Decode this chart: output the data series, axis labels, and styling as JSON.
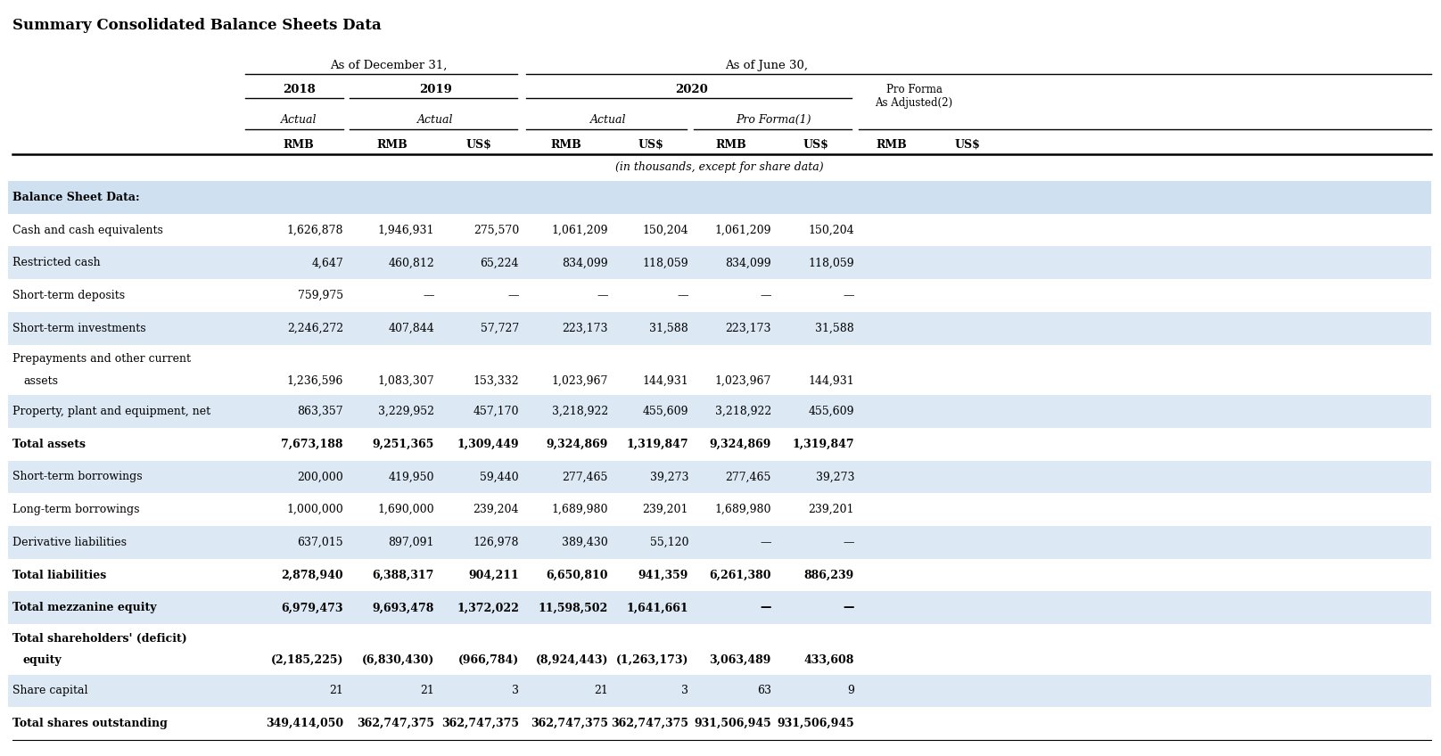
{
  "title": "Summary Consolidated Balance Sheets Data",
  "bg_color": "#ffffff",
  "blue_bg": "#dce9f5",
  "header_bg": "#cfe0f0",
  "rows": [
    {
      "label": "Balance Sheet Data:",
      "bold": true,
      "bg": "header",
      "twolines": false,
      "vals": [
        "",
        "",
        "",
        "",
        "",
        "",
        "",
        "",
        ""
      ]
    },
    {
      "label": "Cash and cash equivalents",
      "bold": false,
      "bg": "white",
      "twolines": false,
      "vals": [
        "1,626,878",
        "1,946,931",
        "275,570",
        "1,061,209",
        "150,204",
        "1,061,209",
        "150,204",
        "",
        ""
      ]
    },
    {
      "label": "Restricted cash",
      "bold": false,
      "bg": "blue",
      "twolines": false,
      "vals": [
        "4,647",
        "460,812",
        "65,224",
        "834,099",
        "118,059",
        "834,099",
        "118,059",
        "",
        ""
      ]
    },
    {
      "label": "Short-term deposits",
      "bold": false,
      "bg": "white",
      "twolines": false,
      "vals": [
        "759,975",
        "—",
        "—",
        "—",
        "—",
        "—",
        "—",
        "",
        ""
      ]
    },
    {
      "label": "Short-term investments",
      "bold": false,
      "bg": "blue",
      "twolines": false,
      "vals": [
        "2,246,272",
        "407,844",
        "57,727",
        "223,173",
        "31,588",
        "223,173",
        "31,588",
        "",
        ""
      ]
    },
    {
      "label": "Prepayments and other current",
      "bold": false,
      "bg": "white",
      "twolines": true,
      "label2": "  assets",
      "vals": [
        "1,236,596",
        "1,083,307",
        "153,332",
        "1,023,967",
        "144,931",
        "1,023,967",
        "144,931",
        "",
        ""
      ]
    },
    {
      "label": "Property, plant and equipment, net",
      "bold": false,
      "bg": "blue",
      "twolines": false,
      "vals": [
        "863,357",
        "3,229,952",
        "457,170",
        "3,218,922",
        "455,609",
        "3,218,922",
        "455,609",
        "",
        ""
      ]
    },
    {
      "label": "Total assets",
      "bold": true,
      "bg": "white",
      "twolines": false,
      "vals": [
        "7,673,188",
        "9,251,365",
        "1,309,449",
        "9,324,869",
        "1,319,847",
        "9,324,869",
        "1,319,847",
        "",
        ""
      ]
    },
    {
      "label": "Short-term borrowings",
      "bold": false,
      "bg": "blue",
      "twolines": false,
      "vals": [
        "200,000",
        "419,950",
        "59,440",
        "277,465",
        "39,273",
        "277,465",
        "39,273",
        "",
        ""
      ]
    },
    {
      "label": "Long-term borrowings",
      "bold": false,
      "bg": "white",
      "twolines": false,
      "vals": [
        "1,000,000",
        "1,690,000",
        "239,204",
        "1,689,980",
        "239,201",
        "1,689,980",
        "239,201",
        "",
        ""
      ]
    },
    {
      "label": "Derivative liabilities",
      "bold": false,
      "bg": "blue",
      "twolines": false,
      "vals": [
        "637,015",
        "897,091",
        "126,978",
        "389,430",
        "55,120",
        "—",
        "—",
        "",
        ""
      ]
    },
    {
      "label": "Total liabilities",
      "bold": true,
      "bg": "white",
      "twolines": false,
      "vals": [
        "2,878,940",
        "6,388,317",
        "904,211",
        "6,650,810",
        "941,359",
        "6,261,380",
        "886,239",
        "",
        ""
      ]
    },
    {
      "label": "Total mezzanine equity",
      "bold": true,
      "bg": "blue",
      "twolines": false,
      "vals": [
        "6,979,473",
        "9,693,478",
        "1,372,022",
        "11,598,502",
        "1,641,661",
        "—",
        "—",
        "",
        ""
      ]
    },
    {
      "label": "Total shareholders' (deficit)",
      "bold": true,
      "bg": "white",
      "twolines": true,
      "label2": "  equity",
      "vals": [
        "(2,185,225)",
        "(6,830,430)",
        "(966,784)",
        "(8,924,443)",
        "(1,263,173)",
        "3,063,489",
        "433,608",
        "",
        ""
      ]
    },
    {
      "label": "Share capital",
      "bold": false,
      "bg": "blue",
      "twolines": false,
      "vals": [
        "21",
        "21",
        "3",
        "21",
        "3",
        "63",
        "9",
        "",
        ""
      ]
    },
    {
      "label": "Total shares outstanding",
      "bold": true,
      "bg": "white",
      "twolines": false,
      "vals": [
        "349,414,050",
        "362,747,375",
        "362,747,375",
        "362,747,375",
        "362,747,375",
        "931,506,945",
        "931,506,945",
        "",
        ""
      ]
    }
  ]
}
